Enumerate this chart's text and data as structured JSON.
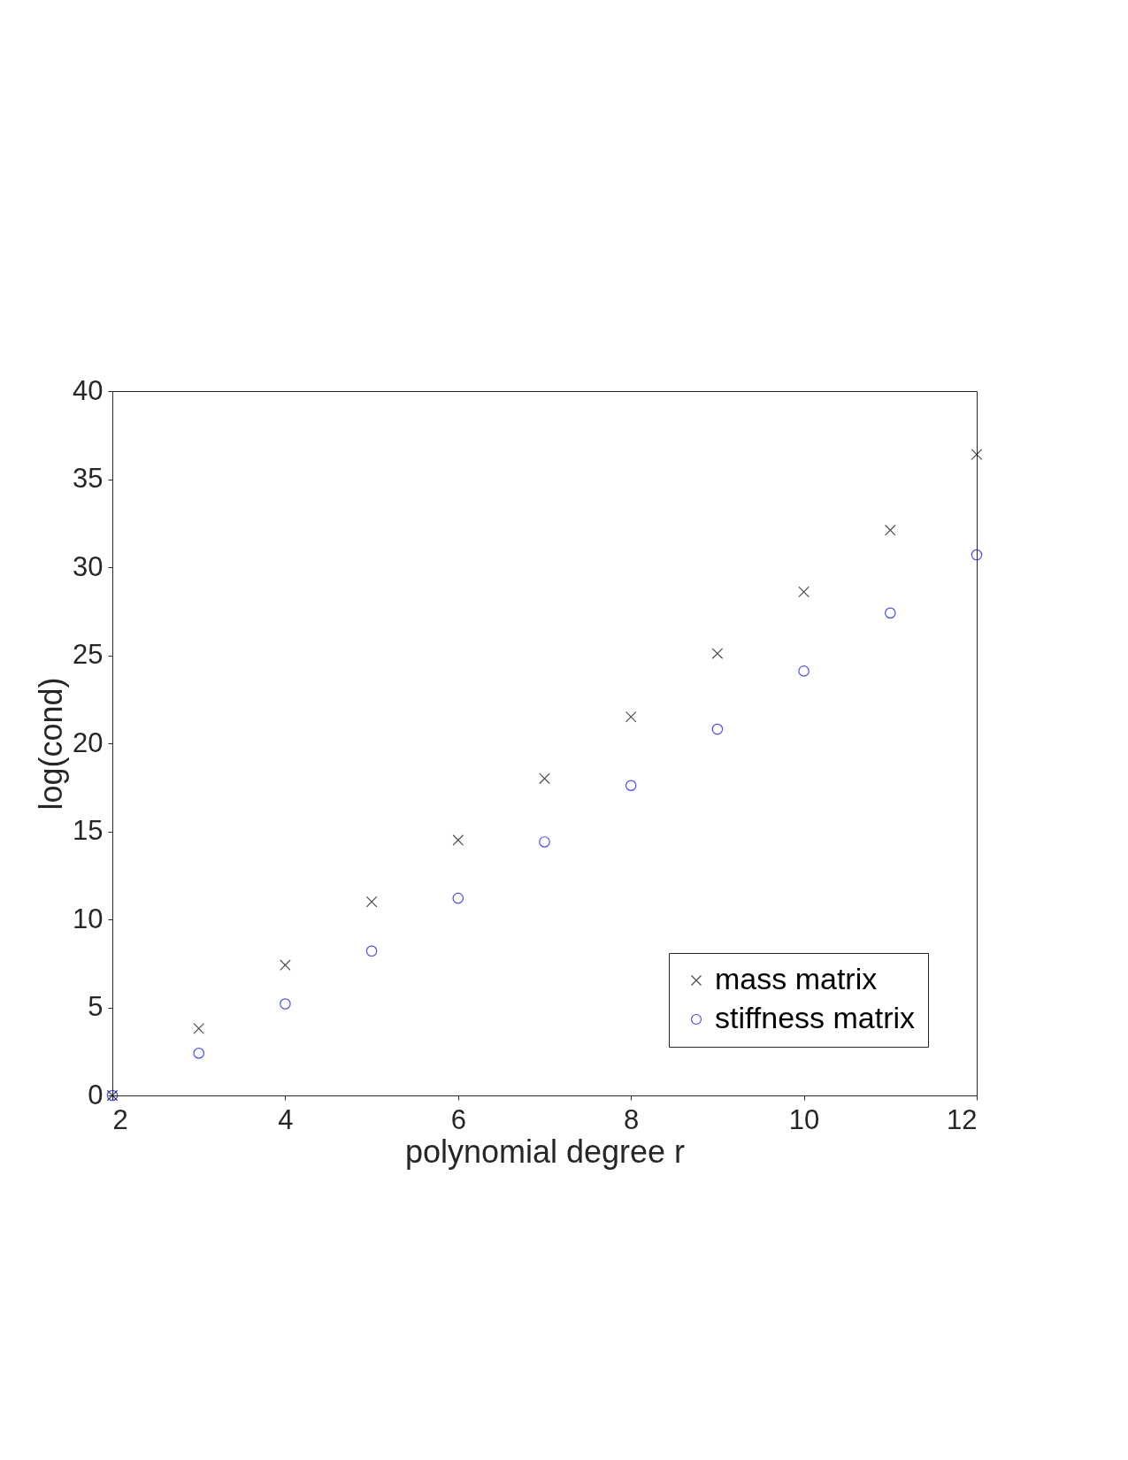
{
  "chart_data": {
    "type": "scatter",
    "xlabel": "polynomial degree r",
    "ylabel": "log(cond)",
    "x": [
      2,
      3,
      4,
      5,
      6,
      7,
      8,
      9,
      10,
      11,
      12
    ],
    "series": [
      {
        "name": "mass matrix",
        "color": "#000000",
        "marker": "cross",
        "values": [
          0.0,
          3.8,
          7.4,
          11.0,
          14.5,
          18.0,
          21.5,
          25.1,
          28.6,
          32.1,
          36.4
        ]
      },
      {
        "name": "stiffness matrix",
        "color": "#0000ff",
        "marker": "circle",
        "values": [
          0.0,
          2.4,
          5.2,
          8.2,
          11.2,
          14.4,
          17.6,
          20.8,
          24.1,
          27.4,
          30.7
        ]
      }
    ],
    "xlim": [
      2,
      12
    ],
    "xticks": [
      2,
      4,
      6,
      8,
      10,
      12
    ],
    "ylim": [
      0,
      40
    ],
    "yticks": [
      0,
      5,
      10,
      15,
      20,
      25,
      30,
      35,
      40
    ],
    "grid": false,
    "legend": "bottom right"
  }
}
